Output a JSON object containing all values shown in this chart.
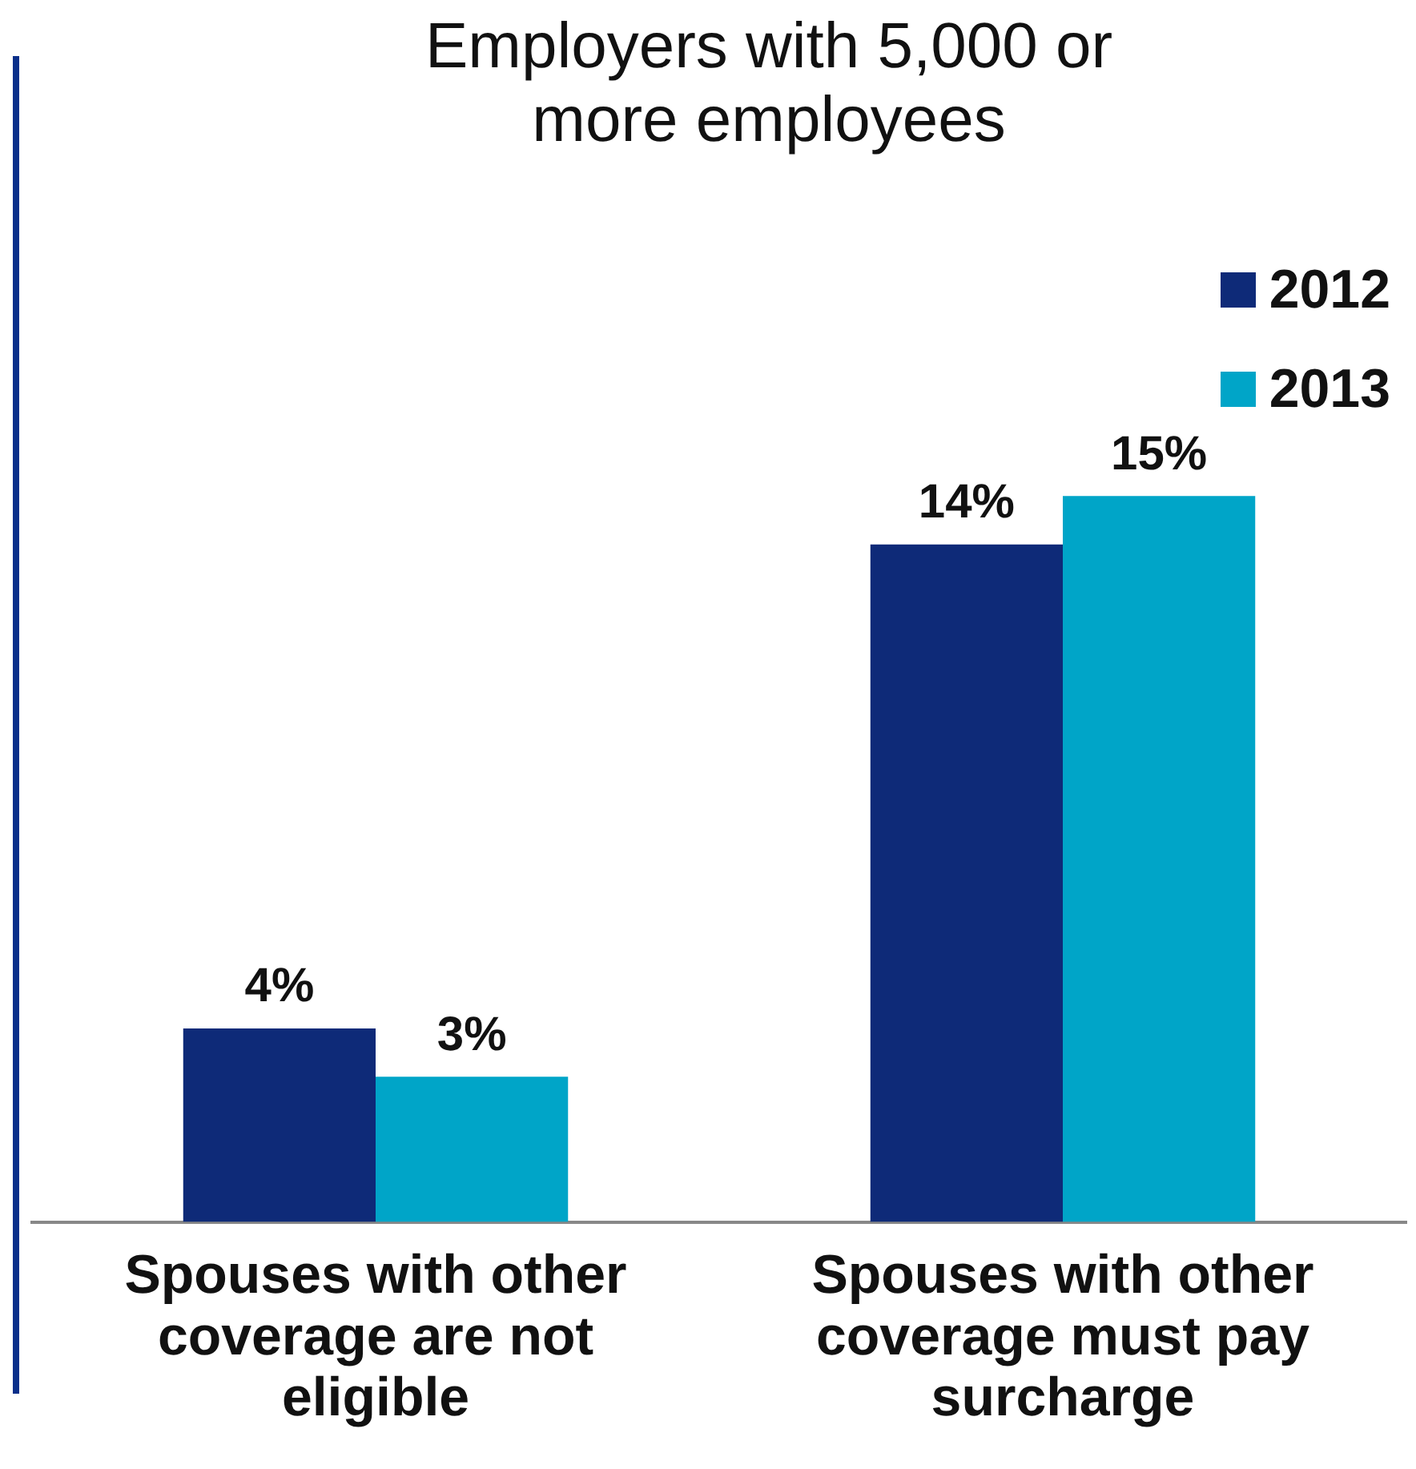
{
  "chart_data": {
    "type": "bar",
    "title": "Employers with 5,000 or more employees",
    "categories": [
      "Spouses with other coverage are not eligible",
      "Spouses with other coverage must pay surcharge"
    ],
    "series": [
      {
        "name": "2012",
        "color": "#0e2a78",
        "values": [
          4,
          14
        ],
        "value_labels": [
          "4%",
          "14%"
        ]
      },
      {
        "name": "2013",
        "color": "#00a5c8",
        "values": [
          3,
          15
        ],
        "value_labels": [
          "3%",
          "15%"
        ]
      }
    ],
    "legend": "top right",
    "grid": false
  }
}
